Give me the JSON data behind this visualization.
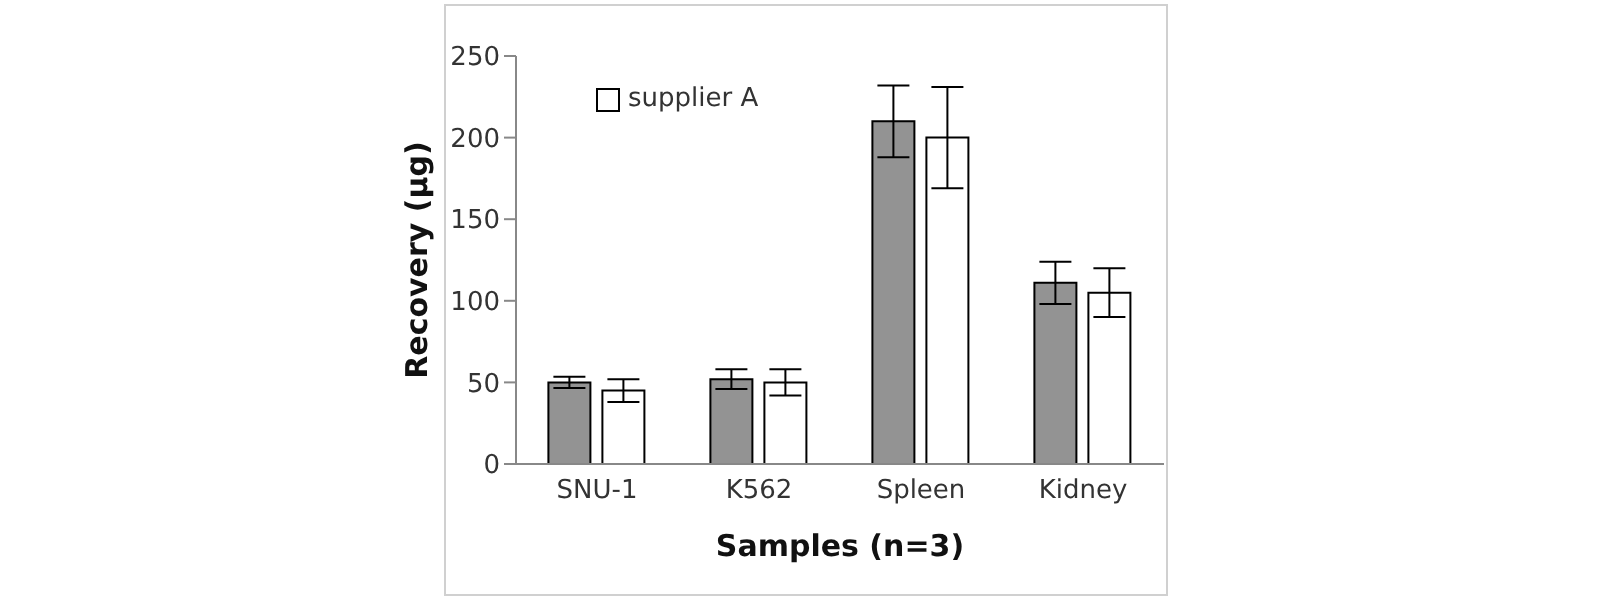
{
  "chart_data": {
    "type": "bar",
    "xlabel": "Samples (n=3)",
    "ylabel": "Recovery (µg)",
    "categories": [
      "SNU-1",
      "K562",
      "Spleen",
      "Kidney"
    ],
    "series": [
      {
        "color": "#939393",
        "values": [
          50,
          52,
          210,
          111
        ],
        "errors": [
          3.5,
          6,
          22,
          13
        ]
      },
      {
        "name": "supplier A",
        "color": "#ffffff",
        "values": [
          45,
          50,
          200,
          105
        ],
        "errors": [
          7,
          8,
          31,
          15
        ]
      }
    ],
    "ylim": [
      0,
      250
    ],
    "yticks": [
      0,
      50,
      100,
      150,
      200,
      250
    ],
    "grid": false,
    "legend": "top left"
  }
}
